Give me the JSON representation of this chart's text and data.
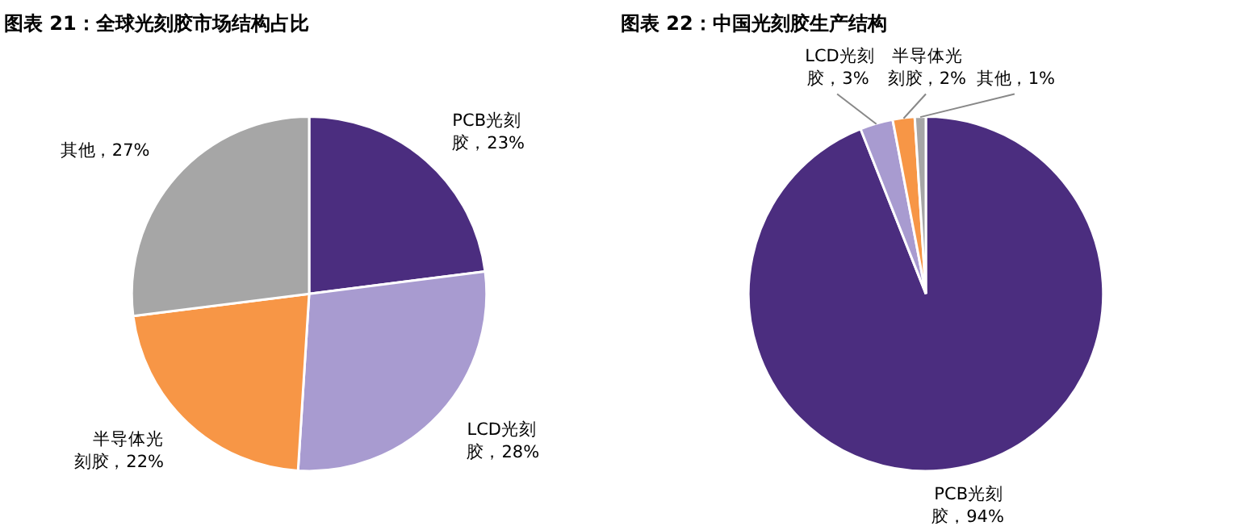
{
  "chart_data": [
    {
      "type": "pie",
      "title": "图表 21：全球光刻胶市场结构占比",
      "categories": [
        "PCB光刻胶",
        "LCD光刻胶",
        "半导体光刻胶",
        "其他"
      ],
      "values": [
        23,
        28,
        22,
        27
      ],
      "colors": [
        "#4b2d7f",
        "#a89bd0",
        "#f79646",
        "#a6a6a6"
      ],
      "value_labels": [
        "，23%",
        "，28%",
        "，22%",
        "，27%"
      ]
    },
    {
      "type": "pie",
      "title": "图表 22：中国光刻胶生产结构",
      "categories": [
        "PCB光刻胶",
        "LCD光刻胶",
        "半导体光刻胶",
        "其他"
      ],
      "values": [
        94,
        3,
        2,
        1
      ],
      "colors": [
        "#4b2d7f",
        "#a89bd0",
        "#f79646",
        "#a6a6a6"
      ],
      "value_labels": [
        "，94%",
        "，3%",
        "，2%",
        "，1%"
      ]
    }
  ]
}
